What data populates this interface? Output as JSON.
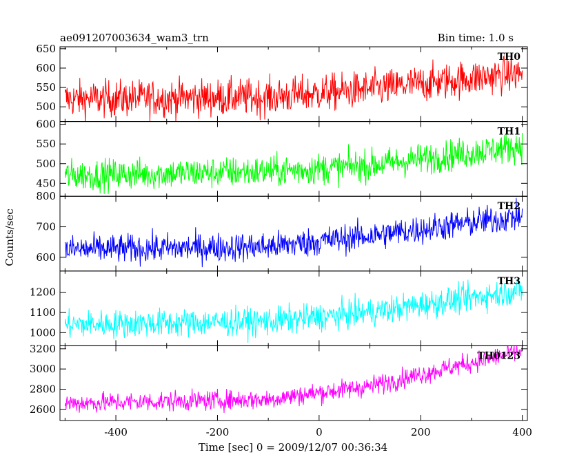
{
  "header": {
    "title": "ae091207003634_wam3_trn",
    "bin_time": "Bin time: 1.0 s"
  },
  "chart_data": {
    "type": "line",
    "xlabel": "Time [sec] 0 = 2009/12/07 00:36:34",
    "ylabel": "Counts/sec",
    "xlim": [
      -510,
      410
    ],
    "x_ticks": [
      -400,
      -200,
      0,
      200,
      400
    ],
    "x_start": -500,
    "x_end": 400,
    "x_step": 1,
    "panels": [
      {
        "name": "TH0",
        "color": "#ff0000",
        "ylim": [
          462,
          655
        ],
        "y_ticks": [
          500,
          550,
          600,
          650
        ],
        "baseline": [
          {
            "t": -500,
            "v": 520
          },
          {
            "t": -100,
            "v": 525
          },
          {
            "t": 100,
            "v": 545
          },
          {
            "t": 400,
            "v": 588
          }
        ],
        "noise": 24
      },
      {
        "name": "TH1",
        "color": "#00ff00",
        "ylim": [
          417,
          607
        ],
        "y_ticks": [
          450,
          500,
          550,
          600
        ],
        "baseline": [
          {
            "t": -500,
            "v": 470
          },
          {
            "t": -100,
            "v": 480
          },
          {
            "t": 100,
            "v": 495
          },
          {
            "t": 400,
            "v": 545
          }
        ],
        "noise": 20
      },
      {
        "name": "TH2",
        "color": "#0000ff",
        "ylim": [
          555,
          800
        ],
        "y_ticks": [
          600,
          700,
          800
        ],
        "baseline": [
          {
            "t": -500,
            "v": 625
          },
          {
            "t": -100,
            "v": 635
          },
          {
            "t": 100,
            "v": 670
          },
          {
            "t": 400,
            "v": 735
          }
        ],
        "noise": 24
      },
      {
        "name": "TH3",
        "color": "#00ffff",
        "ylim": [
          935,
          1305
        ],
        "y_ticks": [
          1000,
          1100,
          1200
        ],
        "baseline": [
          {
            "t": -500,
            "v": 1040
          },
          {
            "t": -100,
            "v": 1055
          },
          {
            "t": 100,
            "v": 1100
          },
          {
            "t": 400,
            "v": 1210
          }
        ],
        "noise": 35
      },
      {
        "name": "TH0123",
        "color": "#ff00ff",
        "ylim": [
          2490,
          3230
        ],
        "y_ticks": [
          2600,
          2800,
          3000,
          3200
        ],
        "baseline": [
          {
            "t": -500,
            "v": 2660
          },
          {
            "t": -100,
            "v": 2700
          },
          {
            "t": 100,
            "v": 2830
          },
          {
            "t": 400,
            "v": 3180
          }
        ],
        "noise": 50
      }
    ]
  }
}
